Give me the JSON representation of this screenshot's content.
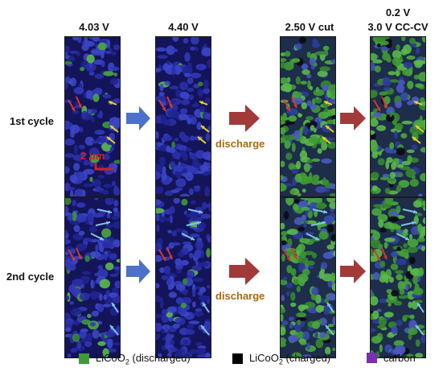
{
  "headers": {
    "h1": "4.03 V",
    "h2": "4.40 V",
    "h3": "2.50 V cut",
    "h4_line1": "0.2 V",
    "h4_line2": "3.0 V CC-CV"
  },
  "rows": {
    "first": "1st cycle",
    "second": "2nd cycle"
  },
  "transition_label": "discharge",
  "scale_bar": "2 μm",
  "legend": {
    "item1_prefix": "LiCoO",
    "item1_sub": "2",
    "item1_suffix": " (discharged)",
    "item2_prefix": "LiCoO",
    "item2_sub": "2",
    "item2_suffix": " (charged)",
    "item3": "carbon"
  },
  "colors": {
    "discharged": "#3f9a35",
    "charged": "#000000",
    "carbon": "#7b2fb3",
    "charge_arrow": "#4b72c8",
    "discharge_arrow": "#a33a3a",
    "discharge_text": "#a86a0a",
    "scale_text": "#d21f1f"
  }
}
